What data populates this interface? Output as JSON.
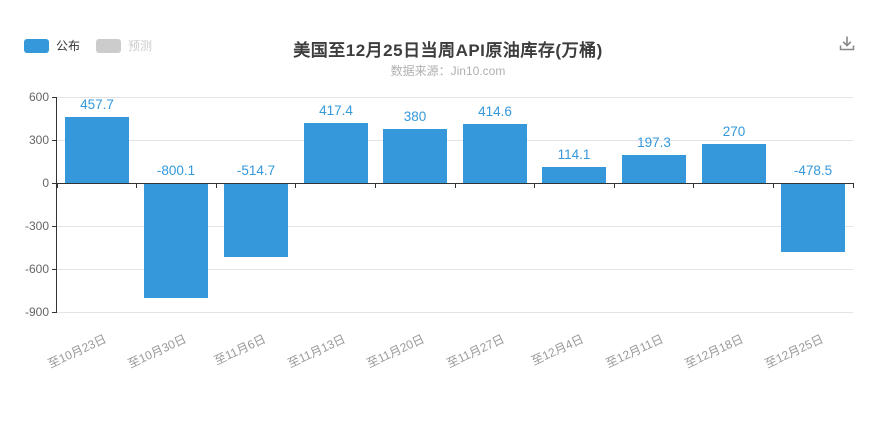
{
  "header": {
    "title": "美国至12月25日当周API原油库存(万桶)",
    "source": "数据来源：Jin10.com"
  },
  "legend": {
    "published": {
      "label": "公布",
      "color": "#3498db",
      "active": true
    },
    "forecast": {
      "label": "预测",
      "color": "#cccccc",
      "active": false
    }
  },
  "icons": {
    "download": "download-icon",
    "download_color": "#888888"
  },
  "colors": {
    "bar": "#3498db",
    "value_label": "#3498db",
    "axis_line": "#333333",
    "gridline": "#e3e3e8",
    "y_label": "#666666",
    "x_label": "#999999"
  },
  "chart_data": {
    "type": "bar",
    "title": "美国至12月25日当周API原油库存(万桶)",
    "subtitle": "数据来源：Jin10.com",
    "categories": [
      "至10月23日",
      "至10月30日",
      "至11月6日",
      "至11月13日",
      "至11月20日",
      "至11月27日",
      "至12月4日",
      "至12月11日",
      "至12月18日",
      "至12月25日"
    ],
    "series": [
      {
        "name": "公布",
        "color": "#3498db",
        "values": [
          457.7,
          -800.1,
          -514.7,
          417.4,
          380,
          414.6,
          114.1,
          197.3,
          270,
          -478.5
        ]
      }
    ],
    "value_labels": [
      "457.7",
      "-800.1",
      "-514.7",
      "417.4",
      "380",
      "414.6",
      "114.1",
      "197.3",
      "270",
      "-478.5"
    ],
    "xlabel": "",
    "ylabel": "",
    "ylim": [
      -900,
      600
    ],
    "yticks": [
      600,
      300,
      0,
      -300,
      -600,
      -900
    ],
    "grid": true,
    "legend_position": "top-left",
    "legend_entries": [
      "公布",
      "预测"
    ]
  }
}
